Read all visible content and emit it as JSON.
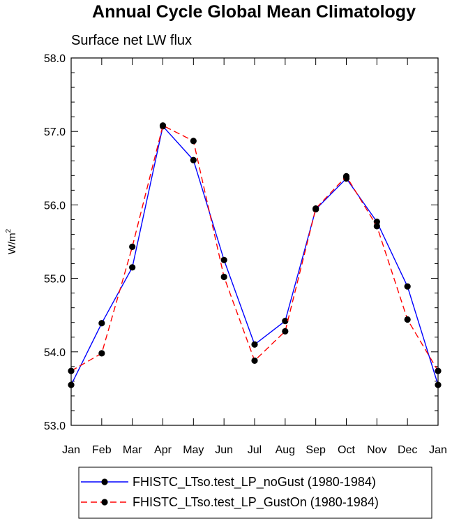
{
  "chart_data": {
    "type": "line",
    "title": "Annual Cycle Global Mean Climatology",
    "subtitle": "Surface net LW flux",
    "ylabel": "W/m",
    "ylabel_superscript": "2",
    "xlabel": "",
    "categories": [
      "Jan",
      "Feb",
      "Mar",
      "Apr",
      "May",
      "Jun",
      "Jul",
      "Aug",
      "Sep",
      "Oct",
      "Nov",
      "Dec",
      "Jan"
    ],
    "ylim": [
      53.0,
      58.0
    ],
    "yticks": [
      53.0,
      54.0,
      55.0,
      56.0,
      57.0,
      58.0
    ],
    "ytick_labels": [
      "53.0",
      "54.0",
      "55.0",
      "56.0",
      "57.0",
      "58.0"
    ],
    "grid": false,
    "legend_position": "bottom",
    "series": [
      {
        "name": "FHISTC_LTso.test_LP_noGust (1980-1984)",
        "color": "#0000ff",
        "line_style": "solid",
        "values": [
          53.55,
          54.39,
          55.15,
          57.07,
          56.61,
          55.25,
          54.1,
          54.42,
          55.94,
          56.36,
          55.77,
          54.89,
          53.55
        ]
      },
      {
        "name": "FHISTC_LTso.test_LP_GustOn (1980-1984)",
        "color": "#ff0000",
        "line_style": "dashed",
        "values": [
          53.74,
          53.98,
          55.43,
          57.08,
          56.87,
          55.02,
          53.88,
          54.28,
          55.95,
          56.39,
          55.71,
          54.44,
          53.74
        ]
      }
    ]
  }
}
